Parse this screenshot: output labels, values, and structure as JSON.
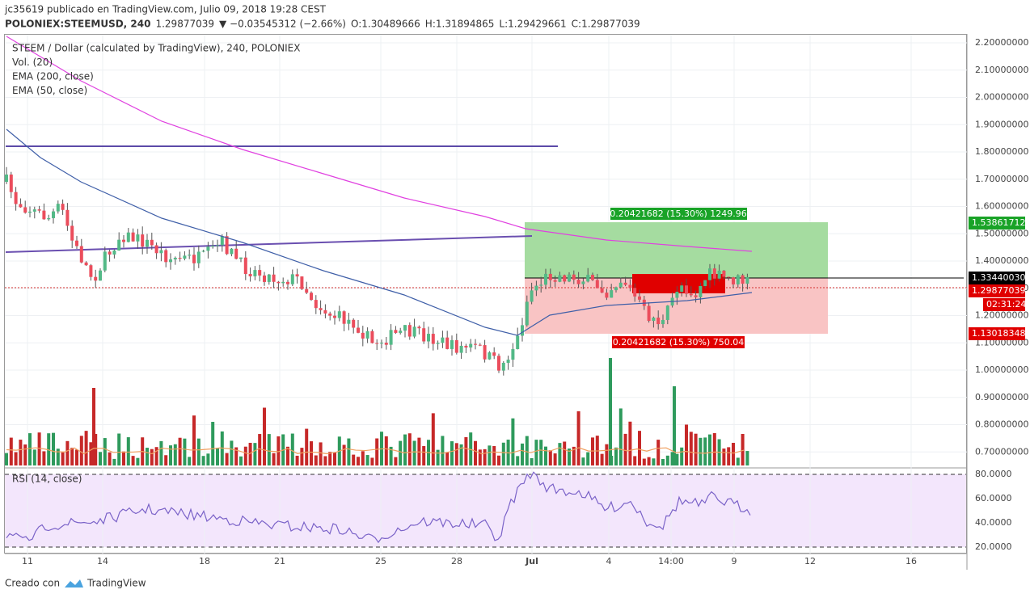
{
  "header": {
    "publisher": "jc35619 publicado en TradingView.com, Julio 09, 2018 19:28 CEST",
    "symbol": "POLONIEX:STEEMUSD, 240",
    "price": "1.29877039",
    "change": "▼ −0.03545312 (−2.66%)",
    "ohlc": [
      {
        "label": "O:",
        "value": "1.30489666"
      },
      {
        "label": "H:",
        "value": "1.31894865"
      },
      {
        "label": "L:",
        "value": "1.29429661"
      },
      {
        "label": "C:",
        "value": "1.29877039"
      }
    ]
  },
  "legend": [
    "STEEM / Dollar (calculated by TradingView), 240, POLONIEX",
    "Vol. (20)",
    "EMA (200, close)",
    "EMA (50, close)"
  ],
  "rsi_legend": "RSI (14, close)",
  "price_axis": [
    "2.20000000",
    "2.10000000",
    "2.00000000",
    "1.90000000",
    "1.80000000",
    "1.70000000",
    "1.60000000",
    "1.50000000",
    "1.40000000",
    "1.30000000",
    "1.20000000",
    "1.10000000",
    "1.00000000",
    "0.90000000",
    "0.80000000",
    "0.70000000"
  ],
  "rsi_axis": [
    "80.0000",
    "60.0000",
    "40.0000",
    "20.0000"
  ],
  "price_tags": {
    "target": "1.53861712",
    "entry": "1.33440030",
    "last": "1.29877039",
    "countdown": "02:31:24",
    "stop": "1.13018348"
  },
  "position": {
    "profit": "0.20421682 (15.30%) 1249.96",
    "loss": "0.20421682 (15.30%) 750.04"
  },
  "time_axis": [
    "11",
    "14",
    "18",
    "21",
    "25",
    "28",
    "Jul",
    "4",
    "14:00",
    "9",
    "12",
    "16"
  ],
  "footer": {
    "created": "Creado con",
    "brand": "TradingView"
  }
}
